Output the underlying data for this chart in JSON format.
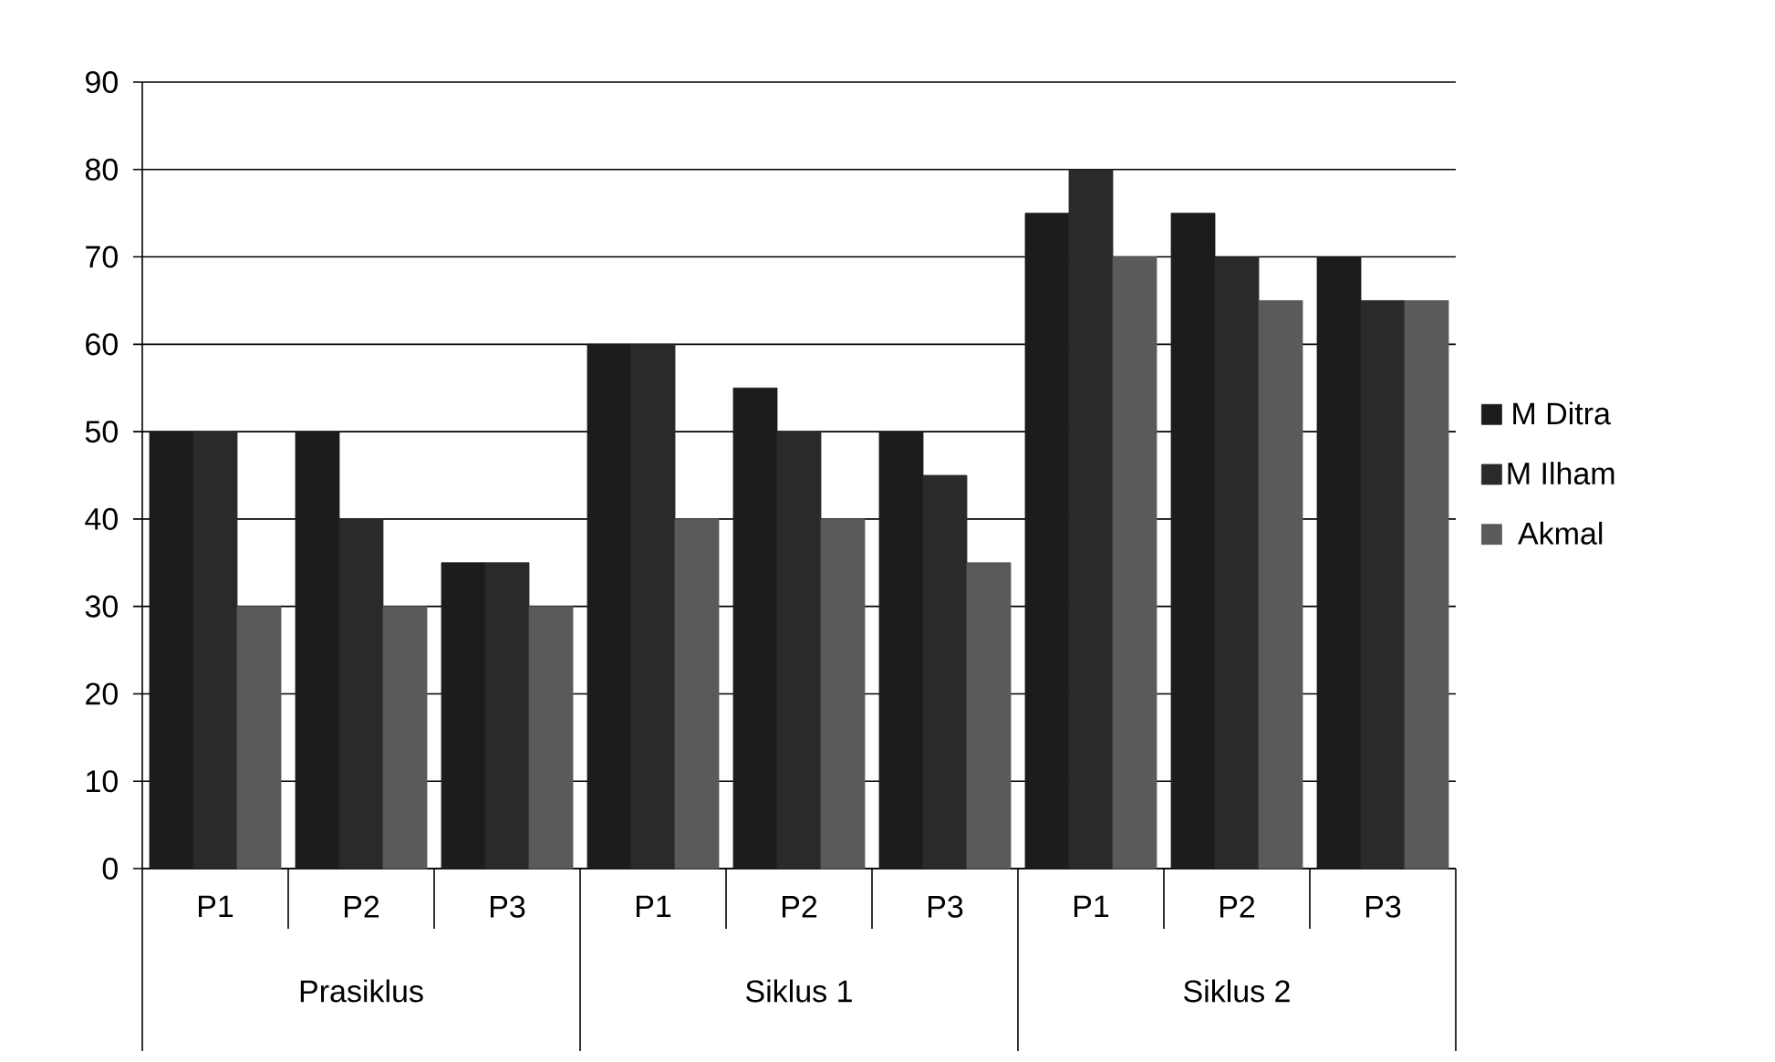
{
  "chart_data": {
    "type": "bar",
    "categories": [
      "P1",
      "P2",
      "P3",
      "P1",
      "P2",
      "P3",
      "P1",
      "P2",
      "P3"
    ],
    "series": [
      {
        "name": "M Ditra",
        "color": "#1c1c1c",
        "values": [
          50,
          50,
          35,
          60,
          55,
          50,
          75,
          75,
          70
        ]
      },
      {
        "name": "M Ilham",
        "color": "#2a2a2a",
        "values": [
          50,
          40,
          35,
          60,
          50,
          45,
          80,
          70,
          65
        ]
      },
      {
        "name": "Akmal",
        "color": "#5a5a5a",
        "values": [
          30,
          30,
          30,
          40,
          40,
          35,
          70,
          65,
          65
        ]
      }
    ],
    "annotations": [
      "Prasiklus",
      "Siklus 1",
      "Siklus 2"
    ],
    "ylim": [
      0,
      90
    ],
    "yticks": [
      0,
      10,
      20,
      30,
      40,
      50,
      60,
      70,
      80,
      90
    ],
    "grid": "y",
    "legend": "right"
  }
}
